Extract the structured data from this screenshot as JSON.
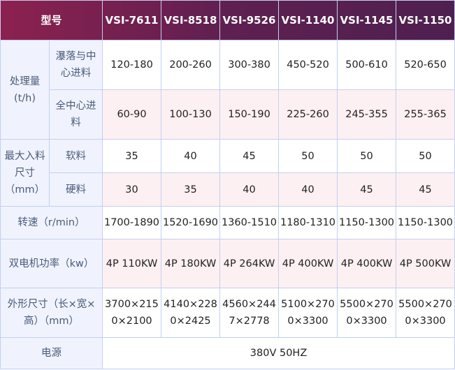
{
  "header": {
    "model_label": "型号",
    "models": [
      "VSI-7611",
      "VSI-8518",
      "VSI-9526",
      "VSI-1140",
      "VSI-1145",
      "VSI-1150"
    ]
  },
  "capacity": {
    "label": "处理量(t/h)",
    "rows": [
      {
        "label": "瀑落与中心进料",
        "values": [
          "120-180",
          "200-260",
          "300-380",
          "450-520",
          "500-610",
          "520-650"
        ]
      },
      {
        "label": "全中心进料",
        "values": [
          "60-90",
          "100-130",
          "150-190",
          "225-260",
          "245-355",
          "255-365"
        ]
      }
    ]
  },
  "feed_size": {
    "label": "最大入料尺寸（mm）",
    "rows": [
      {
        "label": "软料",
        "values": [
          "35",
          "40",
          "45",
          "50",
          "50",
          "50"
        ]
      },
      {
        "label": "硬料",
        "values": [
          "30",
          "35",
          "40",
          "40",
          "45",
          "45"
        ]
      }
    ]
  },
  "speed": {
    "label": "转速（r/min）",
    "values": [
      "1700-1890",
      "1520-1690",
      "1360-1510",
      "1180-1310",
      "1150-1300",
      "1150-1300"
    ]
  },
  "power": {
    "label": "双电机功率（kw）",
    "values": [
      "4P  110KW",
      "4P   180KW",
      "4P    264KW",
      "4P    400KW",
      "4P    400KW",
      "4P    500KW"
    ]
  },
  "dimensions": {
    "label": "外形尺寸（长×宽×高）（mm）",
    "values": [
      "3700×2150×2100",
      "4140×2280×2425",
      "4560×2447×2778",
      "5100×2700×3300",
      "5500×2700×3300",
      "5500×2700×3300"
    ]
  },
  "power_source": {
    "label": "电源",
    "value": "380V 50HZ"
  }
}
